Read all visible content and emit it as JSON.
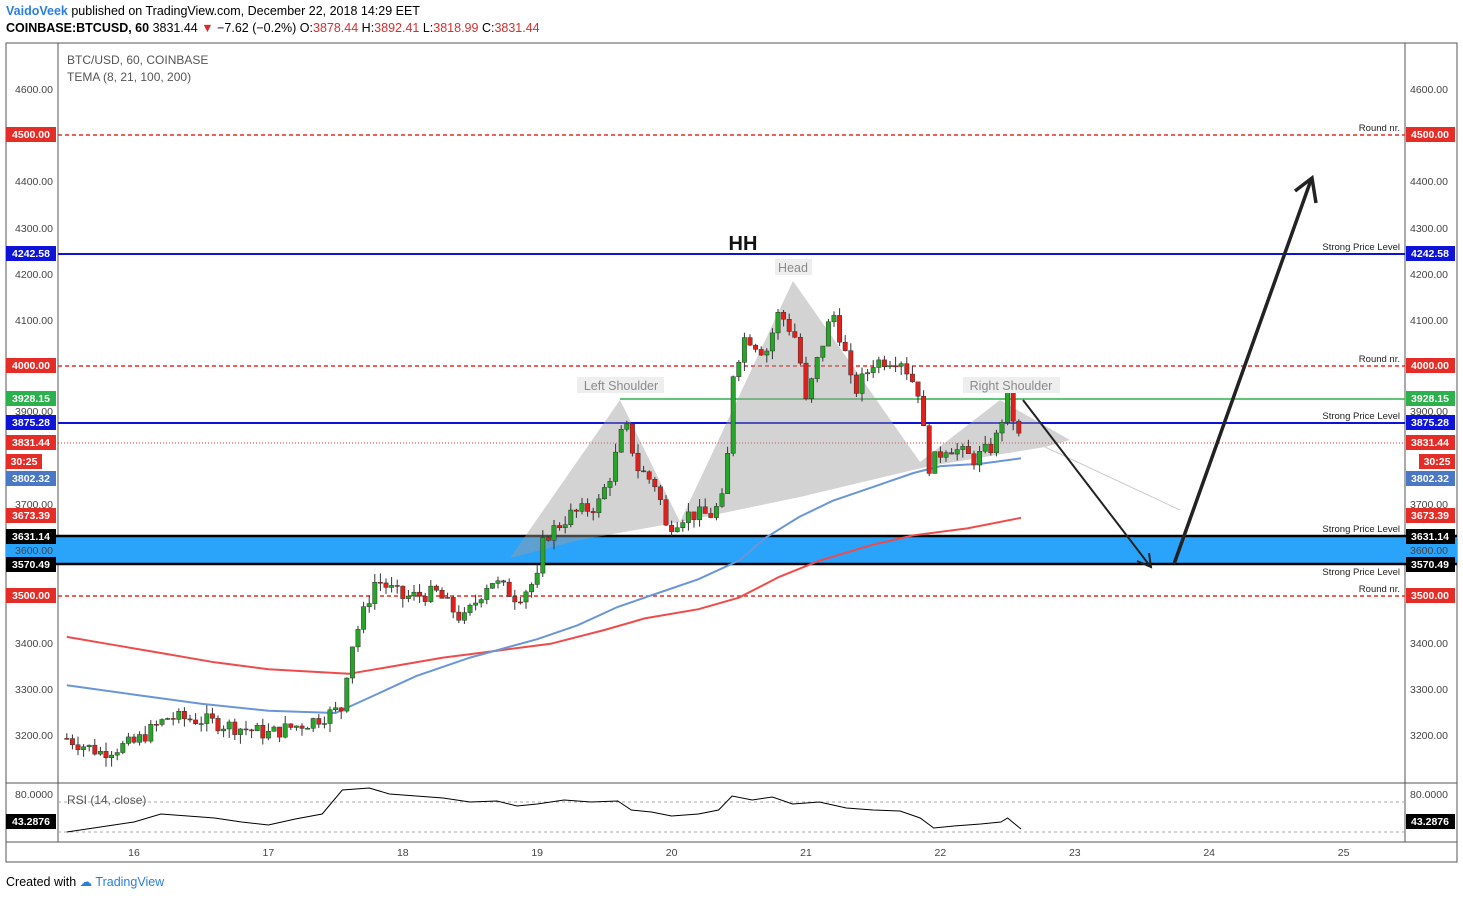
{
  "header": {
    "author": "VaidoVeek",
    "published": "published on TradingView.com, December 22, 2018 14:29 EET",
    "symbol": "COINBASE:BTCUSD, 60",
    "last": "3831.44",
    "change": "−7.62 (−0.2%)",
    "o_label": "O:",
    "o_value": "3878.44",
    "h_label": "H:",
    "h_value": "3892.41",
    "l_label": "L:",
    "l_value": "3818.99",
    "c_label": "C:",
    "c_value": "3831.44"
  },
  "legend": {
    "line1": "BTC/USD, 60, COINBASE",
    "line2": "TEMA (8, 21, 100, 200)",
    "rsi": "RSI (14, close)"
  },
  "footer": {
    "created_with": "Created with",
    "brand": "TradingView"
  },
  "colors": {
    "up": "#26a626",
    "down": "#e0201b",
    "blue_level": "#0d13d9",
    "green_level": "#2bb24c",
    "red_dash": "#e52d27",
    "zone": "#2aa3fb",
    "tema100": "#6a96d8",
    "tema200": "#ef4b4b"
  },
  "annotations": {
    "hh": "HH",
    "head": "Head",
    "left_shoulder": "Left Shoulder",
    "right_shoulder": "Right Shoulder"
  },
  "chart_data": {
    "type": "candlestick",
    "price_ticks": [
      "4600.00",
      "4400.00",
      "4300.00",
      "4200.00",
      "4100.00",
      "3900.00",
      "3700.00",
      "3400.00",
      "3300.00",
      "3200.00"
    ],
    "rsi_tick": "80.0000",
    "x_ticks": [
      "16",
      "17",
      "18",
      "19",
      "20",
      "21",
      "22",
      "23",
      "24",
      "25"
    ],
    "ylim": [
      3100,
      4700
    ],
    "levels": [
      {
        "price": 4500,
        "label": "Round nr.",
        "tag": "4500.00",
        "style": "red-dash"
      },
      {
        "price": 4242.58,
        "label": "Strong Price Level",
        "tag": "4242.58",
        "style": "blue"
      },
      {
        "price": 4000,
        "label": "Round nr.",
        "tag": "4000.00",
        "style": "red-dash"
      },
      {
        "price": 3928.15,
        "label": "",
        "tag": "3928.15",
        "style": "green"
      },
      {
        "price": 3875.28,
        "label": "Strong Price Level",
        "tag": "3875.28",
        "style": "blue"
      },
      {
        "price": 3631.14,
        "label": "Strong Price Level",
        "tag": "3631.14",
        "style": "black"
      },
      {
        "price": 3570.49,
        "label": "Strong Price Level",
        "tag": "3570.49",
        "style": "black"
      },
      {
        "price": 3500,
        "label": "Round nr.",
        "tag": "3500.00",
        "style": "red-dash"
      }
    ],
    "last_price": {
      "price": 3831.44,
      "tag": "3831.44",
      "countdown": "30:25"
    },
    "tema100_last": {
      "price": 3802.32,
      "tag": "3802.32"
    },
    "tema200_last": {
      "price": 3673.39,
      "tag": "3673.39"
    },
    "rsi_last": "43.2876",
    "right_axis_ticks": [
      "4600.00",
      "4400.00",
      "4300.00",
      "4200.00",
      "4100.00",
      "3900.00",
      "3700.00",
      "3600.00",
      "3400.00",
      "3300.00",
      "3200.00"
    ],
    "left_axis_extra": [
      "3600.00"
    ],
    "tema100": [
      [
        15.5,
        3310
      ],
      [
        16,
        3290
      ],
      [
        16.5,
        3270
      ],
      [
        17,
        3255
      ],
      [
        17.5,
        3250
      ],
      [
        17.8,
        3290
      ],
      [
        18.1,
        3330
      ],
      [
        18.5,
        3370
      ],
      [
        19,
        3410
      ],
      [
        19.3,
        3440
      ],
      [
        19.6,
        3480
      ],
      [
        19.9,
        3510
      ],
      [
        20.2,
        3540
      ],
      [
        20.5,
        3580
      ],
      [
        20.7,
        3630
      ],
      [
        20.95,
        3675
      ],
      [
        21.2,
        3710
      ],
      [
        21.5,
        3740
      ],
      [
        21.8,
        3770
      ],
      [
        22,
        3785
      ],
      [
        22.3,
        3790
      ],
      [
        22.6,
        3802
      ]
    ],
    "tema200": [
      [
        15.5,
        3415
      ],
      [
        15.8,
        3400
      ],
      [
        16.2,
        3380
      ],
      [
        16.6,
        3360
      ],
      [
        17,
        3345
      ],
      [
        17.3,
        3340
      ],
      [
        17.6,
        3335
      ],
      [
        17.9,
        3350
      ],
      [
        18.3,
        3370
      ],
      [
        18.7,
        3385
      ],
      [
        19.1,
        3400
      ],
      [
        19.5,
        3430
      ],
      [
        19.8,
        3455
      ],
      [
        20.2,
        3475
      ],
      [
        20.5,
        3500
      ],
      [
        20.8,
        3545
      ],
      [
        21.1,
        3580
      ],
      [
        21.5,
        3615
      ],
      [
        21.8,
        3635
      ],
      [
        22.2,
        3650
      ],
      [
        22.6,
        3673
      ]
    ],
    "rsi": [
      [
        15.5,
        42
      ],
      [
        15.8,
        48
      ],
      [
        16.0,
        52
      ],
      [
        16.2,
        60
      ],
      [
        16.4,
        58
      ],
      [
        16.6,
        56
      ],
      [
        16.8,
        52
      ],
      [
        17.0,
        49
      ],
      [
        17.2,
        55
      ],
      [
        17.4,
        60
      ],
      [
        17.55,
        84
      ],
      [
        17.75,
        86
      ],
      [
        17.9,
        80
      ],
      [
        18.1,
        78
      ],
      [
        18.3,
        76
      ],
      [
        18.5,
        72
      ],
      [
        18.7,
        73
      ],
      [
        18.85,
        68
      ],
      [
        19.0,
        70
      ],
      [
        19.2,
        74
      ],
      [
        19.4,
        72
      ],
      [
        19.6,
        73
      ],
      [
        19.7,
        64
      ],
      [
        19.85,
        62
      ],
      [
        20.0,
        58
      ],
      [
        20.2,
        60
      ],
      [
        20.35,
        64
      ],
      [
        20.45,
        78
      ],
      [
        20.6,
        74
      ],
      [
        20.75,
        77
      ],
      [
        20.9,
        70
      ],
      [
        21.1,
        72
      ],
      [
        21.3,
        66
      ],
      [
        21.5,
        64
      ],
      [
        21.7,
        63
      ],
      [
        21.85,
        56
      ],
      [
        21.95,
        46
      ],
      [
        22.1,
        48
      ],
      [
        22.3,
        50
      ],
      [
        22.45,
        52
      ],
      [
        22.5,
        56
      ],
      [
        22.6,
        45
      ]
    ]
  }
}
